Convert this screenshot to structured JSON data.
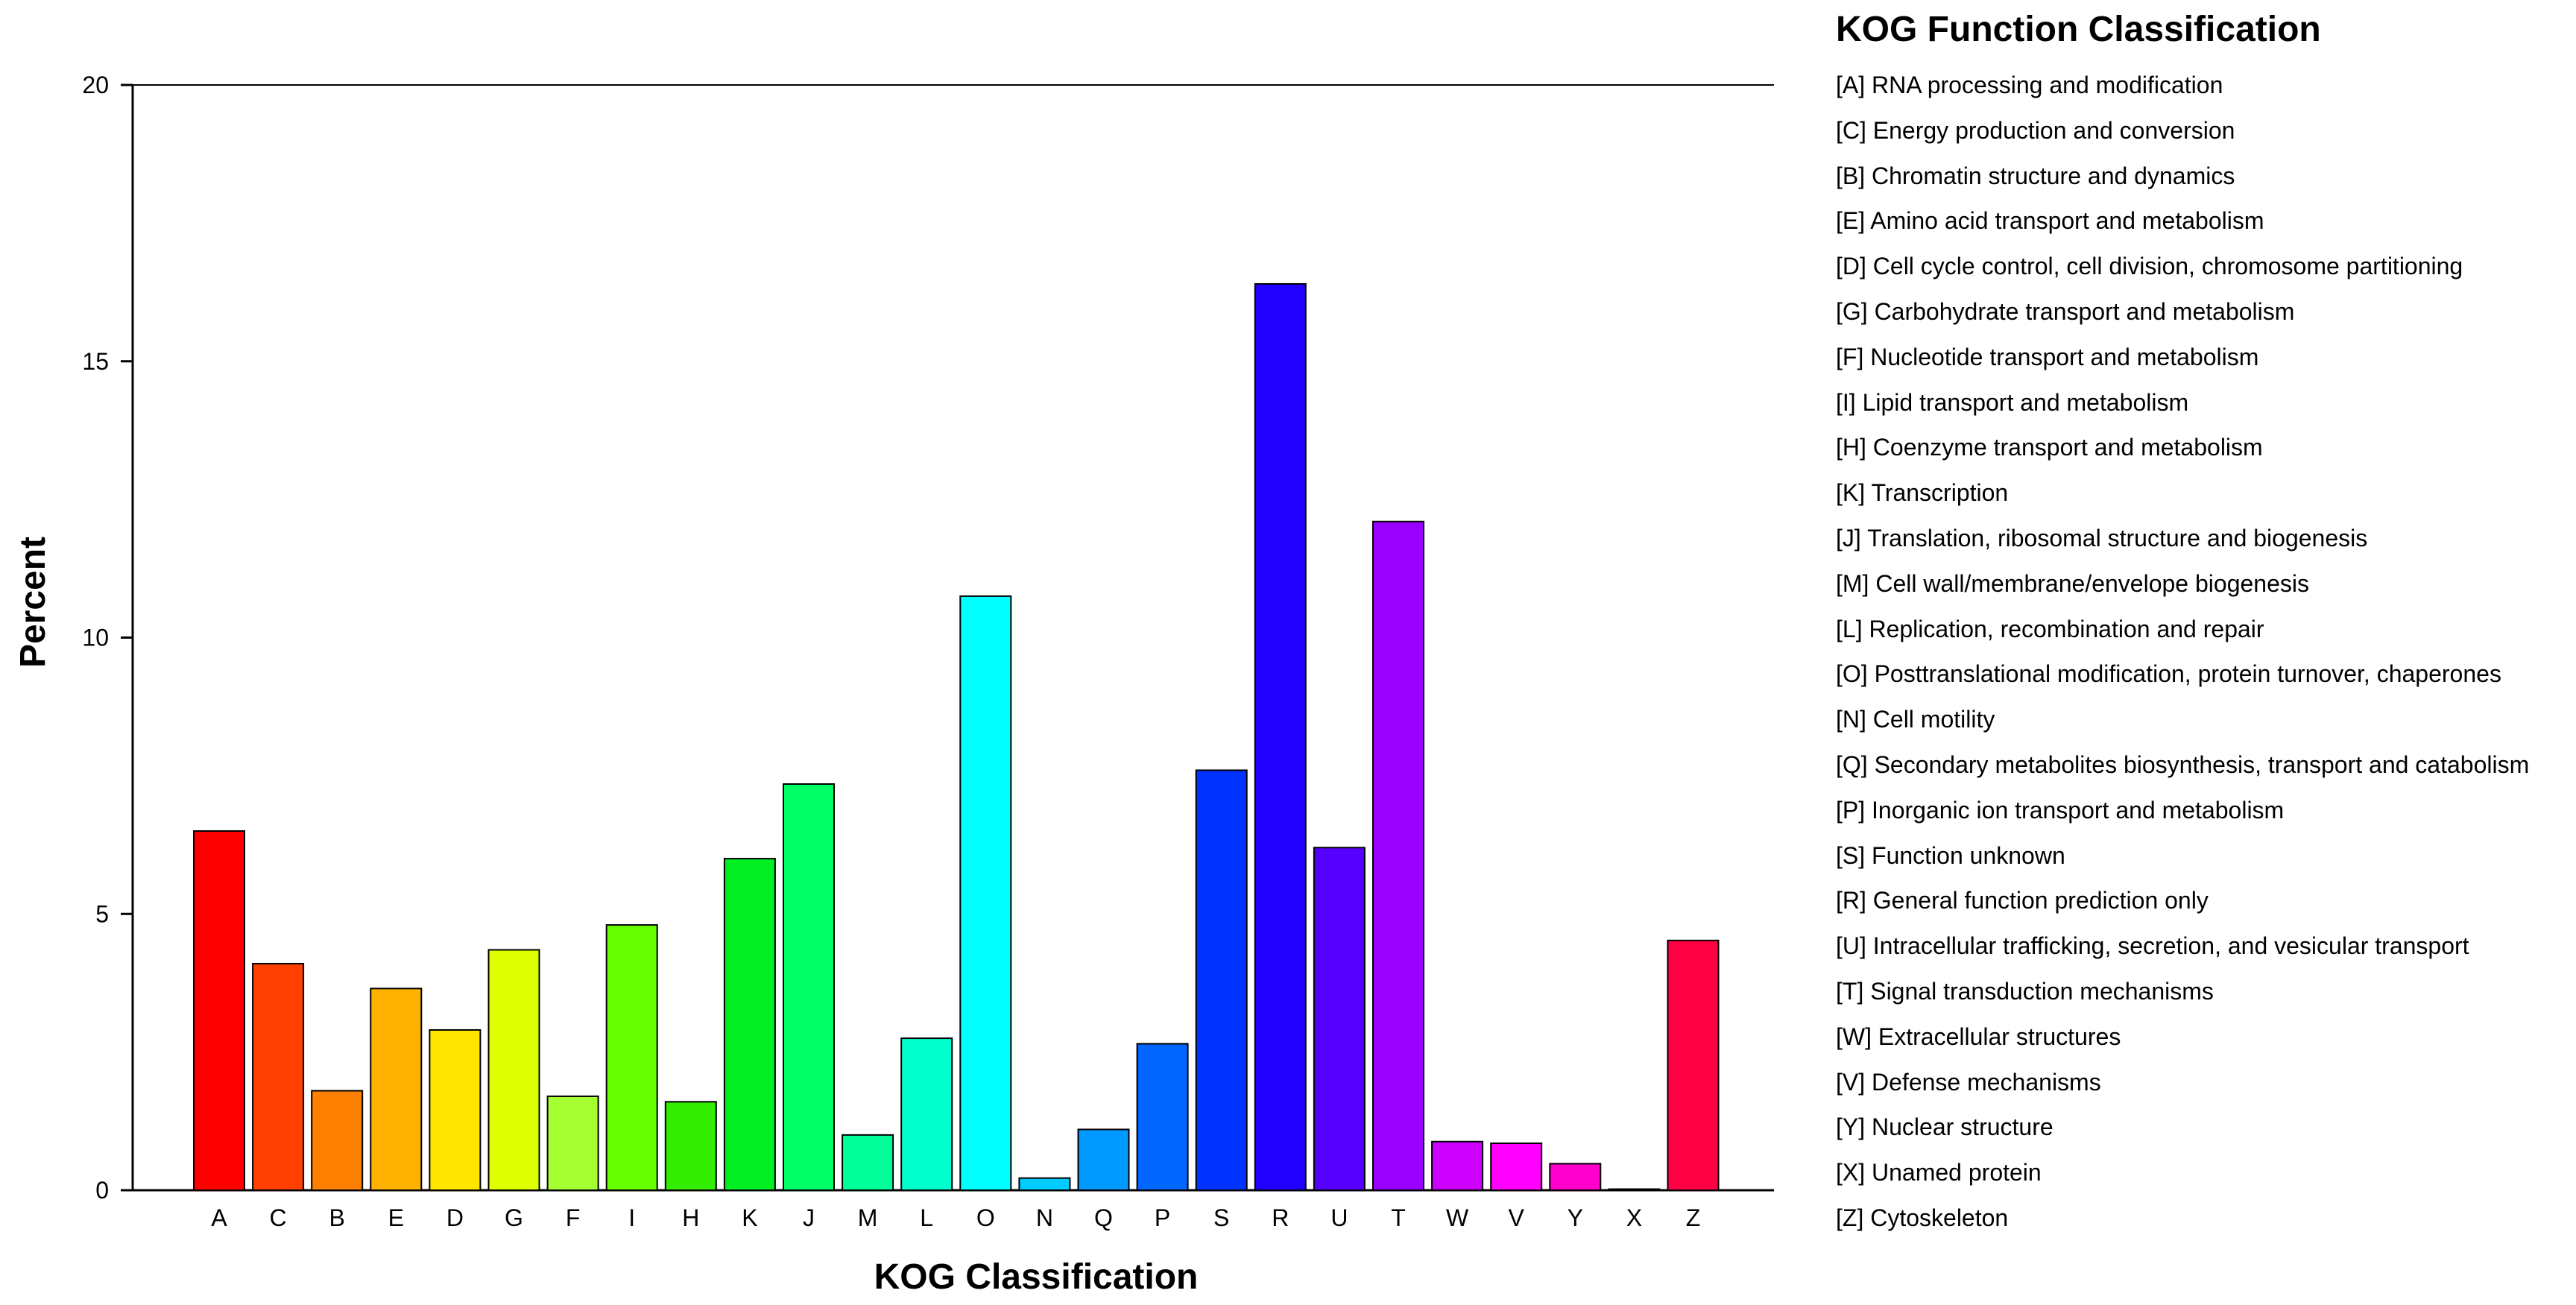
{
  "chart_data": {
    "type": "bar",
    "xlabel": "KOG Classification",
    "ylabel": "Percent",
    "ylim": [
      0,
      20
    ],
    "yticks": [
      0,
      5,
      10,
      15,
      20
    ],
    "grid": false,
    "categories": [
      "A",
      "C",
      "B",
      "E",
      "D",
      "G",
      "F",
      "I",
      "H",
      "K",
      "J",
      "M",
      "L",
      "O",
      "N",
      "Q",
      "P",
      "S",
      "R",
      "U",
      "T",
      "W",
      "V",
      "Y",
      "X",
      "Z"
    ],
    "values": [
      6.5,
      4.1,
      1.8,
      3.65,
      2.9,
      4.35,
      1.7,
      4.8,
      1.6,
      6.0,
      7.35,
      1.0,
      2.75,
      10.75,
      0.22,
      1.1,
      2.65,
      7.6,
      16.4,
      6.2,
      12.1,
      0.88,
      0.85,
      0.48,
      0.02,
      4.52
    ],
    "colors": [
      "#ff0000",
      "#ff4000",
      "#ff8000",
      "#ffb300",
      "#ffe600",
      "#ddff00",
      "#a6ff33",
      "#66ff00",
      "#33ee00",
      "#00ee22",
      "#00ff66",
      "#00ff99",
      "#00ffcc",
      "#00ffff",
      "#00ccff",
      "#0099ff",
      "#0066ff",
      "#0033ff",
      "#2200ff",
      "#5500ff",
      "#9900ff",
      "#cc00ff",
      "#ff00ff",
      "#ff00cc",
      "#ff0099",
      "#ff0044"
    ]
  },
  "legend": {
    "title": "KOG Function Classification",
    "items": [
      "[A] RNA processing and modification",
      "[C] Energy production and conversion",
      "[B] Chromatin structure and dynamics",
      "[E] Amino acid transport and metabolism",
      "[D] Cell cycle control, cell division, chromosome partitioning",
      "[G] Carbohydrate transport and metabolism",
      "[F] Nucleotide transport and metabolism",
      "[I] Lipid transport and metabolism",
      "[H] Coenzyme transport and metabolism",
      "[K] Transcription",
      "[J] Translation, ribosomal structure and biogenesis",
      "[M] Cell wall/membrane/envelope biogenesis",
      "[L] Replication, recombination and repair",
      "[O] Posttranslational modification, protein turnover, chaperones",
      "[N] Cell motility",
      "[Q] Secondary metabolites biosynthesis, transport and catabolism",
      "[P] Inorganic ion transport and metabolism",
      "[S] Function unknown",
      "[R] General function prediction only",
      "[U] Intracellular trafficking, secretion, and vesicular transport",
      "[T] Signal transduction mechanisms",
      "[W] Extracellular structures",
      "[V] Defense mechanisms",
      "[Y] Nuclear structure",
      "[X] Unamed protein",
      "[Z] Cytoskeleton"
    ]
  }
}
